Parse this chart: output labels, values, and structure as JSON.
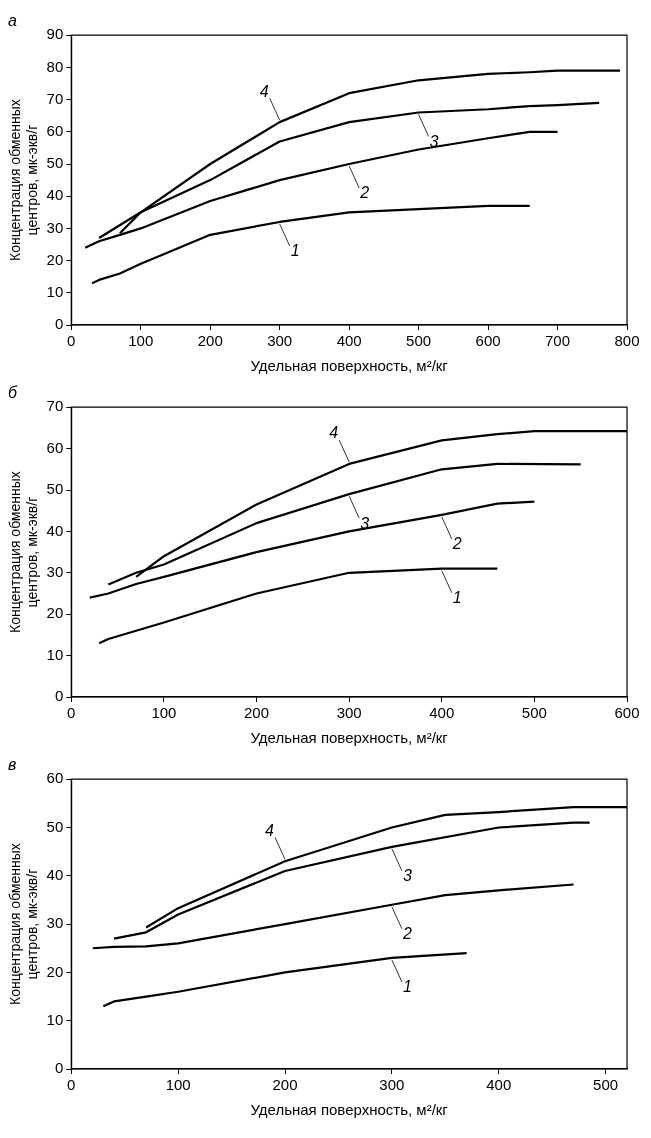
{
  "chart_data": [
    {
      "type": "line",
      "title": "а",
      "xlabel": "Удельная поверхность, м²/кг",
      "ylabel": "Концентрация обменных\nцентров, мк-экв/г",
      "xlim": [
        0,
        800
      ],
      "xticks": [
        0,
        100,
        200,
        300,
        400,
        500,
        600,
        700,
        800
      ],
      "ylim": [
        0,
        90
      ],
      "yticks": [
        0,
        10,
        20,
        30,
        40,
        50,
        60,
        70,
        80,
        90
      ],
      "grid": false,
      "legend": false,
      "marker": "none",
      "line_style": "solid",
      "annotations": [
        {
          "text": "1",
          "x": 300,
          "y": 32
        },
        {
          "text": "2",
          "x": 400,
          "y": 50
        },
        {
          "text": "3",
          "x": 500,
          "y": 66
        },
        {
          "text": "4",
          "x": 300,
          "y": 63
        }
      ],
      "series": [
        {
          "color": "#000000",
          "x": [
            30,
            40,
            70,
            100,
            200,
            300,
            400,
            500,
            600,
            660
          ],
          "values": [
            13,
            14,
            16,
            19,
            28,
            32,
            35,
            36,
            37,
            37
          ]
        },
        {
          "color": "#000000",
          "x": [
            20,
            40,
            70,
            100,
            200,
            300,
            400,
            500,
            600,
            660,
            700
          ],
          "values": [
            24,
            26,
            28,
            30,
            38.5,
            45,
            50,
            54.5,
            58,
            60,
            60
          ]
        },
        {
          "color": "#000000",
          "x": [
            70,
            100,
            200,
            300,
            400,
            500,
            600,
            660,
            700,
            760
          ],
          "values": [
            28.5,
            35,
            45,
            57,
            63,
            66,
            67,
            68,
            68.3,
            69
          ]
        },
        {
          "color": "#000000",
          "x": [
            40,
            100,
            200,
            300,
            400,
            500,
            600,
            660,
            700,
            790
          ],
          "values": [
            27,
            35,
            50,
            63,
            72,
            76,
            78,
            78.5,
            79,
            79
          ]
        }
      ]
    },
    {
      "type": "line",
      "title": "б",
      "xlabel": "Удельная поверхность, м²/кг",
      "ylabel": "Концентрация обменных\nцентров, мк-экв/г",
      "xlim": [
        0,
        600
      ],
      "xticks": [
        0,
        100,
        200,
        300,
        400,
        500,
        600
      ],
      "ylim": [
        0,
        70
      ],
      "yticks": [
        0,
        10,
        20,
        30,
        40,
        50,
        60,
        70
      ],
      "grid": false,
      "legend": false,
      "marker": "none",
      "line_style": "solid",
      "annotations": [
        {
          "text": "1",
          "x": 400,
          "y": 31
        },
        {
          "text": "2",
          "x": 400,
          "y": 44
        },
        {
          "text": "3",
          "x": 300,
          "y": 49
        },
        {
          "text": "4",
          "x": 300,
          "y": 56.3
        }
      ],
      "series": [
        {
          "color": "#000000",
          "x": [
            30,
            40,
            70,
            100,
            200,
            300,
            400,
            460
          ],
          "values": [
            13,
            14,
            16,
            18,
            25,
            30,
            31,
            31
          ]
        },
        {
          "color": "#000000",
          "x": [
            20,
            40,
            70,
            100,
            200,
            300,
            400,
            460,
            500
          ],
          "values": [
            24,
            25,
            27.3,
            29,
            35,
            40,
            44,
            46.7,
            47.2
          ]
        },
        {
          "color": "#000000",
          "x": [
            40,
            70,
            100,
            200,
            300,
            400,
            460,
            550
          ],
          "values": [
            27.2,
            30,
            32,
            42,
            49,
            55,
            56.3,
            56.2
          ]
        },
        {
          "color": "#000000",
          "x": [
            70,
            100,
            200,
            300,
            400,
            460,
            500,
            600
          ],
          "values": [
            29,
            34,
            46.5,
            56.3,
            62,
            63.5,
            64.2,
            64.2
          ]
        }
      ]
    },
    {
      "type": "line",
      "title": "в",
      "xlabel": "Удельная поверхность, м²/кг",
      "ylabel": "Концентрация обменных\nцентров, мк-экв/г",
      "xlim": [
        0,
        520
      ],
      "xticks": [
        0,
        100,
        200,
        300,
        400,
        500
      ],
      "ylim": [
        0,
        60
      ],
      "yticks": [
        0,
        10,
        20,
        30,
        40,
        50,
        60
      ],
      "grid": false,
      "legend": false,
      "marker": "none",
      "line_style": "solid",
      "annotations": [
        {
          "text": "1",
          "x": 300,
          "y": 23
        },
        {
          "text": "2",
          "x": 300,
          "y": 34
        },
        {
          "text": "3",
          "x": 300,
          "y": 46
        },
        {
          "text": "4",
          "x": 200,
          "y": 43
        }
      ],
      "series": [
        {
          "color": "#000000",
          "x": [
            30,
            40,
            70,
            100,
            200,
            300,
            370
          ],
          "values": [
            13,
            14,
            15,
            16,
            20,
            23,
            24
          ]
        },
        {
          "color": "#000000",
          "x": [
            20,
            40,
            70,
            100,
            200,
            300,
            350,
            400,
            470
          ],
          "values": [
            25,
            25.3,
            25.4,
            26,
            30,
            34,
            36,
            37,
            38.2
          ]
        },
        {
          "color": "#000000",
          "x": [
            40,
            70,
            100,
            200,
            300,
            400,
            470,
            485
          ],
          "values": [
            27,
            28.3,
            32,
            41,
            46,
            50,
            51,
            51
          ]
        },
        {
          "color": "#000000",
          "x": [
            70,
            100,
            200,
            300,
            350,
            400,
            470,
            520
          ],
          "values": [
            29.3,
            33.3,
            43,
            50,
            52.6,
            53.2,
            54.2,
            54.2
          ]
        }
      ]
    }
  ]
}
